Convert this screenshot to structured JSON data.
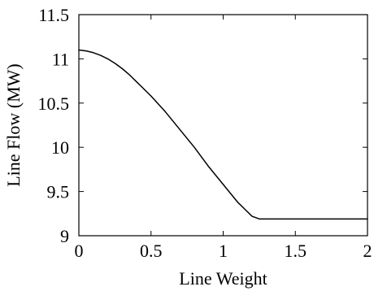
{
  "chart_data": {
    "type": "line",
    "title": "",
    "xlabel": "Line Weight",
    "ylabel": "Line Flow (MW)",
    "xlim": [
      0,
      2
    ],
    "ylim": [
      9,
      11.5
    ],
    "xticks": [
      {
        "value": 0,
        "label": "0"
      },
      {
        "value": 0.5,
        "label": "0.5"
      },
      {
        "value": 1,
        "label": "1"
      },
      {
        "value": 1.5,
        "label": "1.5"
      },
      {
        "value": 2,
        "label": "2"
      }
    ],
    "yticks": [
      {
        "value": 9,
        "label": "9"
      },
      {
        "value": 9.5,
        "label": "9.5"
      },
      {
        "value": 10,
        "label": "10"
      },
      {
        "value": 10.5,
        "label": "10.5"
      },
      {
        "value": 11,
        "label": "11"
      },
      {
        "value": 11.5,
        "label": "11.5"
      }
    ],
    "grid": false,
    "legend": "none",
    "series": [
      {
        "color": "#000000",
        "x": [
          0,
          0.05,
          0.1,
          0.15,
          0.2,
          0.25,
          0.3,
          0.35,
          0.4,
          0.45,
          0.5,
          0.55,
          0.6,
          0.65,
          0.7,
          0.75,
          0.8,
          0.85,
          0.9,
          0.95,
          1.0,
          1.05,
          1.1,
          1.15,
          1.2,
          1.25,
          1.3,
          1.35,
          1.4,
          1.42,
          1.44,
          1.5,
          1.6,
          1.7,
          1.8,
          1.9,
          2.0
        ],
        "y": [
          11.1,
          11.09,
          11.07,
          11.04,
          11.0,
          10.95,
          10.89,
          10.82,
          10.74,
          10.66,
          10.58,
          10.49,
          10.4,
          10.3,
          10.2,
          10.1,
          10.0,
          9.89,
          9.78,
          9.68,
          9.58,
          9.48,
          9.38,
          9.3,
          9.22,
          9.19,
          9.19,
          9.19,
          9.19,
          9.19,
          9.19,
          9.19,
          9.19,
          9.19,
          9.19,
          9.19,
          9.19
        ]
      }
    ]
  }
}
